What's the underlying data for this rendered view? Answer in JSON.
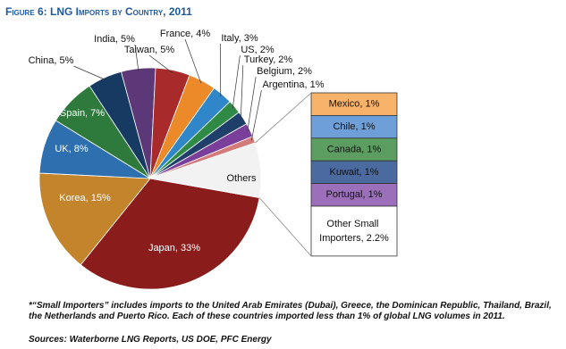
{
  "chart_data": {
    "type": "pie",
    "title": "Figure 6:  LNG Imports by Country, 2011",
    "values": [
      33,
      15,
      8,
      7,
      5,
      5,
      5,
      4,
      3,
      2,
      2,
      2,
      1,
      8
    ],
    "value_labels": [
      "Japan, 33%",
      "Korea, 15%",
      "UK, 8%",
      "Spain, 7%",
      "China, 5%",
      "India, 5%",
      "Taiwan, 5%",
      "France, 4%",
      "Italy, 3%",
      "US, 2%",
      "Turkey, 2%",
      "Belgium, 2%",
      "Argentina, 1%",
      "Others"
    ],
    "colors": [
      "#8b1c1c",
      "#c4842c",
      "#2e6fb0",
      "#2d7a3c",
      "#173a63",
      "#5c3878",
      "#a82a2a",
      "#ec8a2a",
      "#2f86c9",
      "#2f8a46",
      "#1f3f6b",
      "#7a3f9a",
      "#d47a7a",
      "#f2f2f2"
    ],
    "others_breakdown": {
      "values": [
        1,
        1,
        1,
        1,
        1,
        2.2
      ],
      "value_labels": [
        "Mexico, 1%",
        "Chile, 1%",
        "Canada, 1%",
        "Kuwait, 1%",
        "Portugal, 1%",
        "Other Small Importers, 2.2%"
      ],
      "colors": [
        "#f7b36a",
        "#6f9fd8",
        "#5c9e62",
        "#4a6aa0",
        "#9b6fba",
        "#ffffff"
      ]
    },
    "footnote": [
      "*“Small Importers” includes imports to the United Arab Emirates (Dubai), Greece, the Dominican Republic, Thailand, Brazil,",
      "the Netherlands and Puerto Rico.  Each of these countries imported less than 1% of global LNG volumes in 2011."
    ],
    "source": "Sources: Waterborne LNG Reports, US DOE, PFC Energy"
  }
}
